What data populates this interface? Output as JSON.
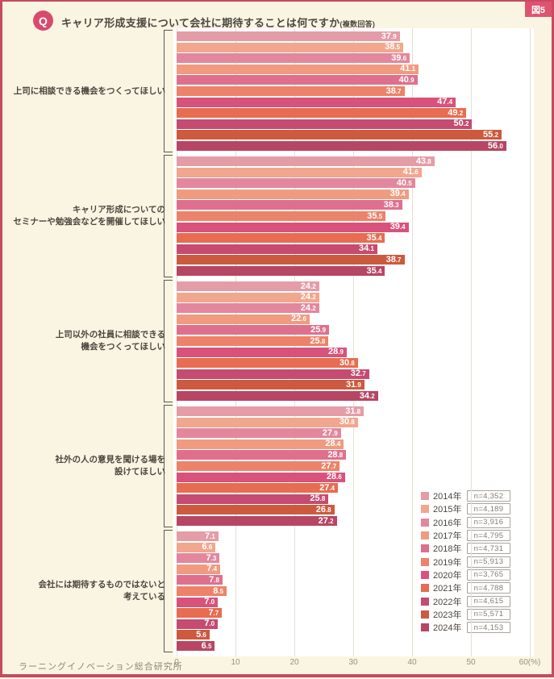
{
  "figure_label": "図5",
  "header": {
    "q_icon": "Q",
    "title": "キャリア形成支援について会社に期待することは何ですか",
    "note": "(複数回答)"
  },
  "footer": {
    "source": "ラーニングイノベーション総合研究所"
  },
  "colors": {
    "panel_background": "#faf5e2",
    "panel_border": "#c64a60",
    "badge_background": "#df5370",
    "q_circle": "#d84a6d",
    "plot_background": "#ffffff",
    "gridline": "#e3e0d5",
    "text_dark": "#4b463f",
    "text_gray": "#8d8776"
  },
  "chart_data": {
    "type": "bar",
    "orientation": "horizontal",
    "unit": "%",
    "xlim": [
      0,
      60
    ],
    "xticks": [
      "0",
      "10",
      "20",
      "30",
      "40",
      "50",
      "60(%)"
    ],
    "grid": true,
    "legend_position": "right-bottom",
    "categories": [
      {
        "lines": [
          "上司に相談できる機会をつくってほしい"
        ]
      },
      {
        "lines": [
          "キャリア形成についての",
          "セミナーや勉強会などを開催してほしい"
        ]
      },
      {
        "lines": [
          "上司以外の社員に相談できる",
          "機会をつくってほしい"
        ]
      },
      {
        "lines": [
          "社外の人の意見を聞ける場を",
          "設けてほしい"
        ]
      },
      {
        "lines": [
          "会社には期待するものではないと",
          "考えている"
        ]
      }
    ],
    "series": [
      {
        "name": "2014年",
        "n": "n=4,352",
        "color": "#e49ca7",
        "values": [
          37.9,
          43.8,
          24.2,
          31.8,
          7.1
        ]
      },
      {
        "name": "2015年",
        "n": "n=4,189",
        "color": "#f1a78d",
        "values": [
          38.5,
          41.6,
          24.2,
          30.8,
          6.6
        ]
      },
      {
        "name": "2016年",
        "n": "n=3,916",
        "color": "#e2879e",
        "values": [
          39.6,
          40.5,
          24.2,
          27.9,
          7.3
        ]
      },
      {
        "name": "2017年",
        "n": "n=4,795",
        "color": "#f09b80",
        "values": [
          41.1,
          39.4,
          22.6,
          28.4,
          7.4
        ]
      },
      {
        "name": "2018年",
        "n": "n=4,731",
        "color": "#df708d",
        "values": [
          40.9,
          38.3,
          25.9,
          28.8,
          7.8
        ]
      },
      {
        "name": "2019年",
        "n": "n=5,913",
        "color": "#ec8368",
        "values": [
          38.7,
          35.5,
          25.8,
          27.7,
          8.5
        ]
      },
      {
        "name": "2020年",
        "n": "n=3,765",
        "color": "#d9527b",
        "values": [
          47.4,
          39.4,
          28.9,
          28.6,
          7.0
        ]
      },
      {
        "name": "2021年",
        "n": "n=4,788",
        "color": "#e76c50",
        "values": [
          49.2,
          35.4,
          30.8,
          27.4,
          7.7
        ]
      },
      {
        "name": "2022年",
        "n": "n=4,615",
        "color": "#c54b70",
        "values": [
          50.2,
          34.1,
          32.7,
          25.8,
          7.0
        ]
      },
      {
        "name": "2023年",
        "n": "n=5,571",
        "color": "#cc5a3f",
        "values": [
          55.2,
          38.7,
          31.9,
          26.8,
          5.6
        ]
      },
      {
        "name": "2024年",
        "n": "n=4,153",
        "color": "#b64663",
        "values": [
          56.0,
          35.4,
          34.2,
          27.2,
          6.5
        ]
      }
    ]
  }
}
